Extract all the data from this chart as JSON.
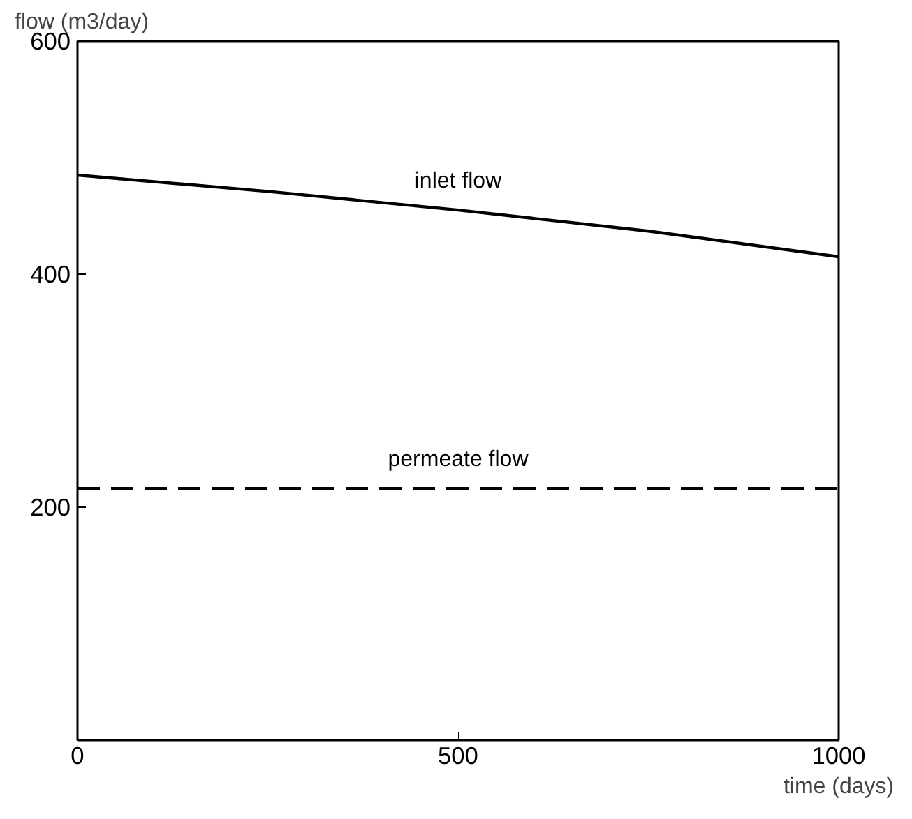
{
  "chart_data": {
    "type": "line",
    "xlabel": "time (days)",
    "ylabel": "flow (m3/day)",
    "xlim": [
      0,
      1000
    ],
    "ylim": [
      0,
      600
    ],
    "xticks": [
      0,
      500,
      1000
    ],
    "yticks": [
      200,
      400,
      600
    ],
    "grid": false,
    "marker": "none",
    "series": [
      {
        "name": "inlet flow",
        "color": "#000000",
        "line_style": "solid",
        "x": [
          0,
          250,
          500,
          750,
          1000
        ],
        "values": [
          485,
          471,
          455,
          437,
          415
        ]
      },
      {
        "name": "permeate flow",
        "color": "#000000",
        "line_style": "dashed",
        "x": [
          0,
          1000
        ],
        "values": [
          216,
          216
        ]
      }
    ]
  }
}
